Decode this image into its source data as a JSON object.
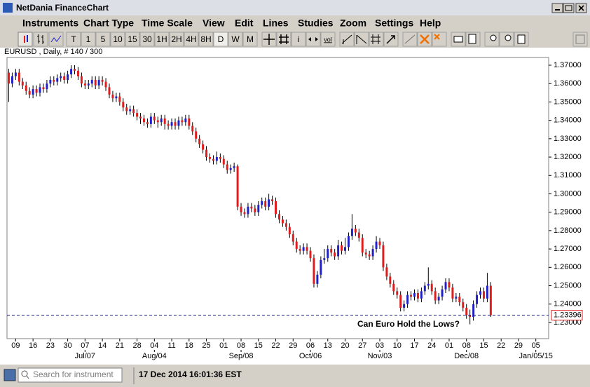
{
  "window": {
    "title": "NetDania FinanceChart"
  },
  "menu": [
    "Instruments",
    "Chart Type",
    "Time Scale",
    "View",
    "Edit",
    "Lines",
    "Studies",
    "Zoom",
    "Settings",
    "Help"
  ],
  "toolbar": [
    "T",
    "1",
    "5",
    "10",
    "15",
    "30",
    "1H",
    "2H",
    "4H",
    "8H",
    "D",
    "W",
    "M",
    "i",
    "vol"
  ],
  "chart_data": {
    "type": "candlestick",
    "title": "EURUSD , Daily, # 140 / 300",
    "up_color": "#2020c8",
    "down_color": "#e01b1b",
    "grid": false,
    "ylim": [
      1.2212,
      1.3742
    ],
    "xlim": [
      -0.5,
      155.7
    ],
    "yticks": [
      {
        "value": 1.37,
        "label": "1.37000"
      },
      {
        "value": 1.36,
        "label": "1.36000"
      },
      {
        "value": 1.35,
        "label": "1.35000"
      },
      {
        "value": 1.34,
        "label": "1.34000"
      },
      {
        "value": 1.33,
        "label": "1.33000"
      },
      {
        "value": 1.32,
        "label": "1.32000"
      },
      {
        "value": 1.31,
        "label": "1.31000"
      },
      {
        "value": 1.3,
        "label": "1.30000"
      },
      {
        "value": 1.29,
        "label": "1.29000"
      },
      {
        "value": 1.28,
        "label": "1.28000"
      },
      {
        "value": 1.27,
        "label": "1.27000"
      },
      {
        "value": 1.26,
        "label": "1.26000"
      },
      {
        "value": 1.25,
        "label": "1.25000"
      },
      {
        "value": 1.24,
        "label": "1.24000"
      },
      {
        "value": 1.23,
        "label": "1.23000"
      }
    ],
    "xticks": [
      {
        "value": 2,
        "label": "09"
      },
      {
        "value": 7,
        "label": "16"
      },
      {
        "value": 12,
        "label": "23"
      },
      {
        "value": 17,
        "label": "30"
      },
      {
        "value": 22,
        "label": "07"
      },
      {
        "value": 27,
        "label": "14"
      },
      {
        "value": 32,
        "label": "21"
      },
      {
        "value": 37,
        "label": "28"
      },
      {
        "value": 42,
        "label": "04"
      },
      {
        "value": 47,
        "label": "11"
      },
      {
        "value": 52,
        "label": "18"
      },
      {
        "value": 57,
        "label": "25"
      },
      {
        "value": 62,
        "label": "01"
      },
      {
        "value": 67,
        "label": "08"
      },
      {
        "value": 72,
        "label": "15"
      },
      {
        "value": 77,
        "label": "22"
      },
      {
        "value": 82,
        "label": "29"
      },
      {
        "value": 87,
        "label": "06"
      },
      {
        "value": 92,
        "label": "13"
      },
      {
        "value": 97,
        "label": "20"
      },
      {
        "value": 102,
        "label": "27"
      },
      {
        "value": 107,
        "label": "03"
      },
      {
        "value": 112,
        "label": "10"
      },
      {
        "value": 117,
        "label": "17"
      },
      {
        "value": 122,
        "label": "24"
      },
      {
        "value": 127,
        "label": "01"
      },
      {
        "value": 132,
        "label": "08"
      },
      {
        "value": 137,
        "label": "15"
      },
      {
        "value": 142,
        "label": "22"
      },
      {
        "value": 147,
        "label": "29"
      },
      {
        "value": 152,
        "label": "05"
      }
    ],
    "xticks_secondary": [
      {
        "value": 22,
        "label": "Jul/07"
      },
      {
        "value": 42,
        "label": "Aug/04"
      },
      {
        "value": 67,
        "label": "Sep/08"
      },
      {
        "value": 87,
        "label": "Oct/06"
      },
      {
        "value": 107,
        "label": "Nov/03"
      },
      {
        "value": 132,
        "label": "Dec/08"
      },
      {
        "value": 152,
        "label": "Jan/05/15"
      }
    ],
    "last_price": {
      "value": 1.23396,
      "label": "1.23396"
    },
    "annotation": "Can Euro Hold the Lows?",
    "candles": [
      [
        1.366,
        1.368,
        1.35,
        1.36
      ],
      [
        1.36,
        1.366,
        1.358,
        1.364
      ],
      [
        1.364,
        1.368,
        1.362,
        1.366
      ],
      [
        1.366,
        1.368,
        1.359,
        1.361
      ],
      [
        1.361,
        1.363,
        1.357,
        1.359
      ],
      [
        1.359,
        1.361,
        1.354,
        1.356
      ],
      [
        1.356,
        1.358,
        1.352,
        1.354
      ],
      [
        1.354,
        1.359,
        1.352,
        1.357
      ],
      [
        1.357,
        1.359,
        1.353,
        1.355
      ],
      [
        1.355,
        1.36,
        1.353,
        1.358
      ],
      [
        1.358,
        1.36,
        1.355,
        1.357
      ],
      [
        1.357,
        1.362,
        1.355,
        1.36
      ],
      [
        1.36,
        1.364,
        1.358,
        1.362
      ],
      [
        1.362,
        1.364,
        1.359,
        1.361
      ],
      [
        1.361,
        1.365,
        1.359,
        1.363
      ],
      [
        1.363,
        1.366,
        1.361,
        1.364
      ],
      [
        1.364,
        1.366,
        1.36,
        1.362
      ],
      [
        1.362,
        1.367,
        1.36,
        1.365
      ],
      [
        1.365,
        1.37,
        1.363,
        1.368
      ],
      [
        1.368,
        1.37,
        1.365,
        1.367
      ],
      [
        1.367,
        1.369,
        1.362,
        1.364
      ],
      [
        1.364,
        1.366,
        1.358,
        1.36
      ],
      [
        1.36,
        1.362,
        1.357,
        1.359
      ],
      [
        1.359,
        1.362,
        1.357,
        1.36
      ],
      [
        1.36,
        1.364,
        1.358,
        1.362
      ],
      [
        1.362,
        1.364,
        1.357,
        1.359
      ],
      [
        1.359,
        1.364,
        1.357,
        1.362
      ],
      [
        1.362,
        1.364,
        1.359,
        1.361
      ],
      [
        1.361,
        1.363,
        1.356,
        1.358
      ],
      [
        1.358,
        1.36,
        1.352,
        1.354
      ],
      [
        1.354,
        1.356,
        1.35,
        1.352
      ],
      [
        1.352,
        1.355,
        1.35,
        1.353
      ],
      [
        1.353,
        1.355,
        1.348,
        1.35
      ],
      [
        1.35,
        1.352,
        1.345,
        1.347
      ],
      [
        1.347,
        1.349,
        1.343,
        1.345
      ],
      [
        1.345,
        1.348,
        1.343,
        1.346
      ],
      [
        1.346,
        1.348,
        1.342,
        1.344
      ],
      [
        1.344,
        1.346,
        1.34,
        1.342
      ],
      [
        1.342,
        1.344,
        1.338,
        1.341
      ],
      [
        1.341,
        1.343,
        1.337,
        1.339
      ],
      [
        1.339,
        1.341,
        1.336,
        1.338
      ],
      [
        1.338,
        1.344,
        1.336,
        1.342
      ],
      [
        1.342,
        1.344,
        1.338,
        1.34
      ],
      [
        1.34,
        1.342,
        1.336,
        1.339
      ],
      [
        1.339,
        1.343,
        1.337,
        1.341
      ],
      [
        1.341,
        1.343,
        1.335,
        1.338
      ],
      [
        1.338,
        1.34,
        1.335,
        1.337
      ],
      [
        1.337,
        1.341,
        1.335,
        1.339
      ],
      [
        1.339,
        1.341,
        1.335,
        1.337
      ],
      [
        1.337,
        1.342,
        1.335,
        1.34
      ],
      [
        1.34,
        1.342,
        1.337,
        1.339
      ],
      [
        1.339,
        1.343,
        1.337,
        1.341
      ],
      [
        1.341,
        1.343,
        1.335,
        1.337
      ],
      [
        1.337,
        1.339,
        1.332,
        1.334
      ],
      [
        1.334,
        1.336,
        1.328,
        1.33
      ],
      [
        1.33,
        1.332,
        1.325,
        1.327
      ],
      [
        1.327,
        1.329,
        1.322,
        1.324
      ],
      [
        1.324,
        1.326,
        1.318,
        1.32
      ],
      [
        1.32,
        1.322,
        1.317,
        1.319
      ],
      [
        1.319,
        1.321,
        1.316,
        1.318
      ],
      [
        1.318,
        1.323,
        1.316,
        1.32
      ],
      [
        1.32,
        1.322,
        1.317,
        1.319
      ],
      [
        1.319,
        1.321,
        1.314,
        1.316
      ],
      [
        1.316,
        1.318,
        1.311,
        1.313
      ],
      [
        1.313,
        1.316,
        1.311,
        1.314
      ],
      [
        1.314,
        1.317,
        1.312,
        1.315
      ],
      [
        1.315,
        1.316,
        1.291,
        1.293
      ],
      [
        1.293,
        1.295,
        1.288,
        1.29
      ],
      [
        1.29,
        1.292,
        1.287,
        1.289
      ],
      [
        1.289,
        1.295,
        1.287,
        1.293
      ],
      [
        1.293,
        1.295,
        1.29,
        1.292
      ],
      [
        1.292,
        1.294,
        1.288,
        1.29
      ],
      [
        1.29,
        1.296,
        1.288,
        1.294
      ],
      [
        1.294,
        1.298,
        1.292,
        1.296
      ],
      [
        1.296,
        1.298,
        1.291,
        1.293
      ],
      [
        1.293,
        1.3,
        1.291,
        1.297
      ],
      [
        1.297,
        1.299,
        1.294,
        1.296
      ],
      [
        1.296,
        1.298,
        1.287,
        1.289
      ],
      [
        1.289,
        1.291,
        1.284,
        1.286
      ],
      [
        1.286,
        1.288,
        1.282,
        1.284
      ],
      [
        1.284,
        1.286,
        1.28,
        1.282
      ],
      [
        1.282,
        1.284,
        1.276,
        1.278
      ],
      [
        1.278,
        1.28,
        1.272,
        1.274
      ],
      [
        1.274,
        1.276,
        1.268,
        1.27
      ],
      [
        1.27,
        1.272,
        1.267,
        1.269
      ],
      [
        1.269,
        1.273,
        1.267,
        1.271
      ],
      [
        1.271,
        1.273,
        1.267,
        1.269
      ],
      [
        1.269,
        1.271,
        1.263,
        1.265
      ],
      [
        1.265,
        1.267,
        1.249,
        1.251
      ],
      [
        1.251,
        1.258,
        1.249,
        1.256
      ],
      [
        1.256,
        1.266,
        1.254,
        1.264
      ],
      [
        1.264,
        1.27,
        1.262,
        1.265
      ],
      [
        1.265,
        1.272,
        1.263,
        1.27
      ],
      [
        1.27,
        1.272,
        1.266,
        1.268
      ],
      [
        1.268,
        1.27,
        1.264,
        1.266
      ],
      [
        1.266,
        1.275,
        1.264,
        1.272
      ],
      [
        1.272,
        1.274,
        1.267,
        1.269
      ],
      [
        1.269,
        1.276,
        1.267,
        1.271
      ],
      [
        1.271,
        1.279,
        1.269,
        1.277
      ],
      [
        1.277,
        1.289,
        1.275,
        1.281
      ],
      [
        1.281,
        1.283,
        1.277,
        1.279
      ],
      [
        1.279,
        1.281,
        1.274,
        1.276
      ],
      [
        1.276,
        1.278,
        1.266,
        1.268
      ],
      [
        1.268,
        1.27,
        1.265,
        1.267
      ],
      [
        1.267,
        1.269,
        1.264,
        1.266
      ],
      [
        1.266,
        1.272,
        1.264,
        1.27
      ],
      [
        1.27,
        1.277,
        1.268,
        1.274
      ],
      [
        1.274,
        1.276,
        1.27,
        1.272
      ],
      [
        1.272,
        1.274,
        1.258,
        1.26
      ],
      [
        1.26,
        1.262,
        1.253,
        1.255
      ],
      [
        1.255,
        1.257,
        1.249,
        1.251
      ],
      [
        1.251,
        1.253,
        1.245,
        1.247
      ],
      [
        1.247,
        1.249,
        1.243,
        1.245
      ],
      [
        1.245,
        1.247,
        1.236,
        1.238
      ],
      [
        1.238,
        1.242,
        1.236,
        1.24
      ],
      [
        1.24,
        1.247,
        1.238,
        1.245
      ],
      [
        1.245,
        1.247,
        1.242,
        1.244
      ],
      [
        1.244,
        1.248,
        1.242,
        1.246
      ],
      [
        1.246,
        1.248,
        1.241,
        1.243
      ],
      [
        1.243,
        1.249,
        1.241,
        1.247
      ],
      [
        1.247,
        1.252,
        1.245,
        1.25
      ],
      [
        1.25,
        1.26,
        1.248,
        1.251
      ],
      [
        1.251,
        1.253,
        1.245,
        1.247
      ],
      [
        1.247,
        1.249,
        1.24,
        1.242
      ],
      [
        1.242,
        1.246,
        1.24,
        1.244
      ],
      [
        1.244,
        1.25,
        1.242,
        1.248
      ],
      [
        1.248,
        1.254,
        1.246,
        1.252
      ],
      [
        1.252,
        1.254,
        1.247,
        1.249
      ],
      [
        1.249,
        1.251,
        1.241,
        1.243
      ],
      [
        1.243,
        1.246,
        1.241,
        1.244
      ],
      [
        1.244,
        1.246,
        1.239,
        1.241
      ],
      [
        1.241,
        1.243,
        1.236,
        1.238
      ],
      [
        1.238,
        1.24,
        1.232,
        1.234
      ],
      [
        1.234,
        1.237,
        1.229,
        1.233
      ],
      [
        1.233,
        1.242,
        1.231,
        1.24
      ],
      [
        1.24,
        1.247,
        1.238,
        1.245
      ],
      [
        1.245,
        1.249,
        1.243,
        1.247
      ],
      [
        1.247,
        1.249,
        1.241,
        1.243
      ],
      [
        1.243,
        1.257,
        1.241,
        1.25
      ],
      [
        1.25,
        1.252,
        1.233,
        1.23396
      ]
    ]
  },
  "status": {
    "search_placeholder": "Search for instrument",
    "timestamp": "17 Dec 2014 16:01:36 EST"
  }
}
